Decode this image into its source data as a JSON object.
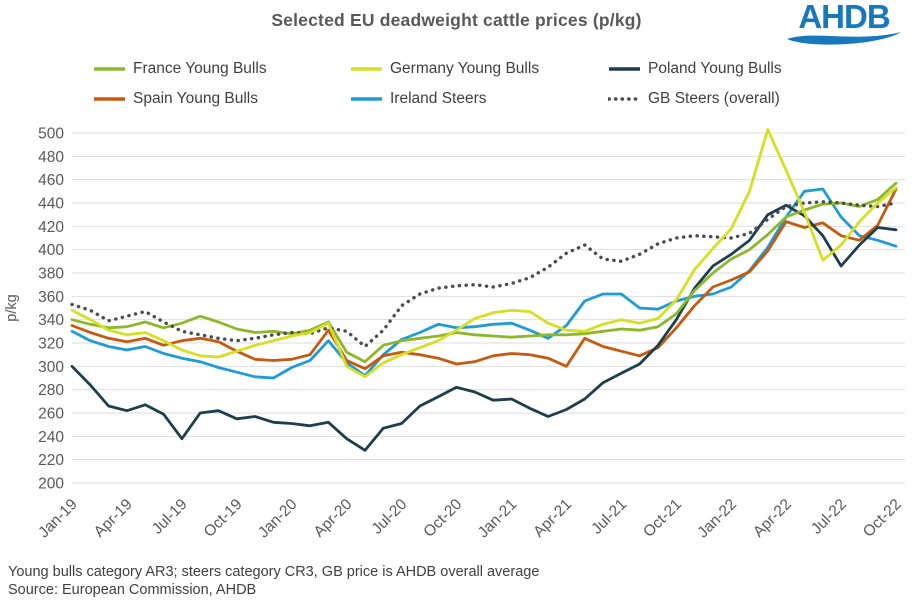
{
  "title": "Selected EU deadweight cattle prices (p/kg)",
  "logo": {
    "text": "AHDB",
    "color": "#1878BE"
  },
  "legend": {
    "items": [
      {
        "label": "France Young Bulls",
        "color": "#8CB82B",
        "style": "solid"
      },
      {
        "label": "Germany Young Bulls",
        "color": "#D7DF23",
        "style": "solid"
      },
      {
        "label": "Poland Young Bulls",
        "color": "#1D3E4F",
        "style": "solid"
      },
      {
        "label": "Spain Young Bulls",
        "color": "#C55A11",
        "style": "solid"
      },
      {
        "label": "Ireland Steers",
        "color": "#1F9BD7",
        "style": "solid"
      },
      {
        "label": "GB Steers (overall)",
        "color": "#4D4D4D",
        "style": "dotted"
      }
    ]
  },
  "chart_data": {
    "type": "line",
    "title": "Selected EU deadweight cattle prices (p/kg)",
    "ylabel": "p/kg",
    "ylim": [
      200,
      500
    ],
    "y_tick_step": 20,
    "grid": "horizontal",
    "x_tick_labels": [
      "Jan-19",
      "Apr-19",
      "Jul-19",
      "Oct-19",
      "Jan-20",
      "Apr-20",
      "Jul-20",
      "Oct-20",
      "Jan-21",
      "Apr-21",
      "Jul-21",
      "Oct-21",
      "Jan-22",
      "Apr-22",
      "Jul-22",
      "Oct-22"
    ],
    "x_unit": "month",
    "x_months": [
      "Jan-19",
      "Feb-19",
      "Mar-19",
      "Apr-19",
      "May-19",
      "Jun-19",
      "Jul-19",
      "Aug-19",
      "Sep-19",
      "Oct-19",
      "Nov-19",
      "Dec-19",
      "Jan-20",
      "Feb-20",
      "Mar-20",
      "Apr-20",
      "May-20",
      "Jun-20",
      "Jul-20",
      "Aug-20",
      "Sep-20",
      "Oct-20",
      "Nov-20",
      "Dec-20",
      "Jan-21",
      "Feb-21",
      "Mar-21",
      "Apr-21",
      "May-21",
      "Jun-21",
      "Jul-21",
      "Aug-21",
      "Sep-21",
      "Oct-21",
      "Nov-21",
      "Dec-21",
      "Jan-22",
      "Feb-22",
      "Mar-22",
      "Apr-22",
      "May-22",
      "Jun-22",
      "Jul-22",
      "Aug-22",
      "Sep-22",
      "Oct-22"
    ],
    "series": [
      {
        "name": "Ireland Steers",
        "color": "#1F9BD7",
        "style": "solid",
        "values": [
          330,
          322,
          317,
          314,
          317,
          311,
          307,
          304,
          299,
          295,
          291,
          290,
          299,
          305,
          322,
          303,
          292,
          310,
          323,
          329,
          336,
          333,
          334,
          336,
          337,
          331,
          324,
          335,
          356,
          362,
          362,
          350,
          349,
          356,
          360,
          362,
          368,
          382,
          402,
          428,
          450,
          452,
          428,
          412,
          408,
          403
        ]
      },
      {
        "name": "Spain Young Bulls",
        "color": "#C55A11",
        "style": "solid",
        "values": [
          335,
          329,
          324,
          321,
          324,
          318,
          322,
          324,
          321,
          313,
          306,
          305,
          306,
          310,
          331,
          305,
          298,
          309,
          312,
          310,
          307,
          302,
          304,
          309,
          311,
          310,
          307,
          300,
          324,
          317,
          313,
          309,
          316,
          333,
          352,
          368,
          374,
          381,
          399,
          424,
          419,
          423,
          412,
          408,
          421,
          452
        ]
      },
      {
        "name": "Poland Young Bulls",
        "color": "#1D3E4F",
        "style": "solid",
        "values": [
          300,
          284,
          266,
          262,
          267,
          259,
          238,
          260,
          262,
          255,
          257,
          252,
          251,
          249,
          252,
          238,
          228,
          247,
          251,
          266,
          274,
          282,
          278,
          271,
          272,
          264,
          257,
          263,
          272,
          286,
          294,
          302,
          318,
          340,
          367,
          386,
          396,
          408,
          430,
          438,
          429,
          412,
          386,
          404,
          419,
          417
        ]
      },
      {
        "name": "France Young Bulls",
        "color": "#8CB82B",
        "style": "solid",
        "values": [
          340,
          336,
          333,
          334,
          338,
          333,
          337,
          343,
          338,
          332,
          329,
          330,
          328,
          331,
          338,
          312,
          304,
          318,
          322,
          324,
          326,
          329,
          327,
          326,
          325,
          326,
          327,
          327,
          328,
          330,
          332,
          331,
          334,
          345,
          365,
          380,
          392,
          400,
          413,
          428,
          434,
          439,
          440,
          437,
          443,
          457
        ]
      },
      {
        "name": "GB Steers (overall)",
        "color": "#4D4D4D",
        "style": "dotted",
        "values": [
          353,
          348,
          339,
          343,
          347,
          338,
          330,
          327,
          324,
          322,
          324,
          327,
          329,
          328,
          333,
          330,
          317,
          331,
          352,
          362,
          367,
          369,
          370,
          368,
          371,
          376,
          385,
          397,
          404,
          392,
          390,
          396,
          405,
          410,
          412,
          411,
          410,
          414,
          426,
          437,
          440,
          441,
          440,
          438,
          437,
          440
        ]
      },
      {
        "name": "Germany Young Bulls",
        "color": "#D7DF23",
        "style": "solid",
        "values": [
          348,
          340,
          331,
          327,
          329,
          322,
          314,
          309,
          308,
          313,
          318,
          322,
          326,
          329,
          337,
          300,
          291,
          303,
          310,
          316,
          322,
          331,
          341,
          346,
          348,
          347,
          337,
          331,
          330,
          336,
          340,
          337,
          341,
          357,
          383,
          401,
          418,
          450,
          503,
          468,
          432,
          391,
          404,
          424,
          440,
          453
        ]
      }
    ],
    "legend_position": "top"
  },
  "footnotes": {
    "line1": "Young bulls category AR3; steers category CR3, GB price is AHDB overall average",
    "line2": "Source: European Commission, AHDB"
  }
}
